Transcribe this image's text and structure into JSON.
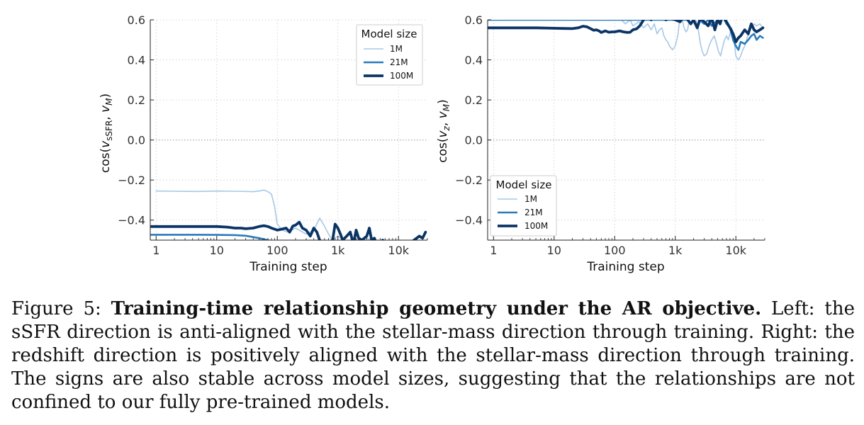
{
  "colors": {
    "1M": "#a6c8e6",
    "21M": "#2b7bba",
    "100M": "#0b3466",
    "grid": "#cccccc",
    "zero": "#aaaaaa"
  },
  "chart_data": [
    {
      "type": "line",
      "panel": "left",
      "xlabel": "Training step",
      "ylabel": "cos(v_sSFR, v_M)",
      "ylabel_parts": {
        "pre": "cos(",
        "v1": "v",
        "s1": "sSFR",
        "mid": ", ",
        "v2": "v",
        "s2": "M",
        "post": ")"
      },
      "xscale": "log",
      "xlim": [
        0.8,
        30000
      ],
      "ylim": [
        -0.5,
        0.6
      ],
      "x_ticks": [
        1,
        10,
        100,
        1000,
        10000
      ],
      "x_tick_labels": [
        "1",
        "10",
        "100",
        "1k",
        "10k"
      ],
      "y_ticks": [
        -0.4,
        -0.2,
        0.0,
        0.2,
        0.4,
        0.6
      ],
      "y_tick_labels": [
        "−0.4",
        "−0.2",
        "0.0",
        "0.2",
        "0.4",
        "0.6"
      ],
      "grid": true,
      "legend": {
        "title": "Model size",
        "position": "top-right"
      },
      "series": [
        {
          "name": "1M",
          "x": [
            1,
            2,
            5,
            10,
            20,
            40,
            50,
            60,
            70,
            80,
            90,
            100,
            120,
            150,
            200,
            300,
            400,
            500,
            600,
            700,
            800,
            1000,
            1500,
            2000,
            3000,
            5000,
            10000,
            20000,
            30000
          ],
          "y": [
            -0.255,
            -0.256,
            -0.257,
            -0.255,
            -0.256,
            -0.258,
            -0.255,
            -0.25,
            -0.258,
            -0.27,
            -0.33,
            -0.42,
            -0.45,
            -0.46,
            -0.44,
            -0.47,
            -0.45,
            -0.39,
            -0.43,
            -0.47,
            -0.5,
            -0.48,
            -0.52,
            -0.5,
            -0.49,
            -0.52,
            -0.51,
            -0.52,
            -0.5
          ]
        },
        {
          "name": "21M",
          "x": [
            0.8,
            1,
            2,
            5,
            10,
            20,
            30,
            50,
            70,
            100,
            150,
            200,
            300,
            500,
            1000,
            2000,
            5000,
            10000,
            20000,
            30000
          ],
          "y": [
            -0.473,
            -0.473,
            -0.473,
            -0.473,
            -0.474,
            -0.475,
            -0.478,
            -0.49,
            -0.5,
            -0.52,
            -0.53,
            -0.54,
            -0.53,
            -0.55,
            -0.55,
            -0.54,
            -0.56,
            -0.55,
            -0.55,
            -0.52
          ]
        },
        {
          "name": "100M",
          "x": [
            0.8,
            1,
            2,
            5,
            10,
            15,
            20,
            25,
            30,
            40,
            50,
            60,
            70,
            80,
            90,
            100,
            120,
            140,
            160,
            180,
            200,
            230,
            260,
            300,
            350,
            400,
            450,
            500,
            600,
            700,
            800,
            900,
            1000,
            1100,
            1200,
            1400,
            1600,
            1800,
            2000,
            2200,
            2500,
            3000,
            3300,
            3600,
            4000,
            4500,
            5000,
            5500,
            6000,
            8000,
            10000,
            12000,
            15000,
            18000,
            20000,
            22000,
            25000,
            28000
          ],
          "y": [
            -0.432,
            -0.432,
            -0.432,
            -0.432,
            -0.432,
            -0.435,
            -0.44,
            -0.44,
            -0.443,
            -0.44,
            -0.432,
            -0.428,
            -0.432,
            -0.44,
            -0.445,
            -0.45,
            -0.445,
            -0.44,
            -0.46,
            -0.43,
            -0.425,
            -0.41,
            -0.44,
            -0.45,
            -0.48,
            -0.44,
            -0.46,
            -0.5,
            -0.52,
            -0.55,
            -0.52,
            -0.42,
            -0.44,
            -0.47,
            -0.5,
            -0.48,
            -0.46,
            -0.52,
            -0.45,
            -0.49,
            -0.5,
            -0.48,
            -0.44,
            -0.5,
            -0.49,
            -0.53,
            -0.51,
            -0.5,
            -0.53,
            -0.54,
            -0.56,
            -0.55,
            -0.52,
            -0.5,
            -0.49,
            -0.48,
            -0.49,
            -0.46
          ]
        }
      ]
    },
    {
      "type": "line",
      "panel": "right",
      "xlabel": "Training step",
      "ylabel": "cos(v_z, v_M)",
      "ylabel_parts": {
        "pre": "cos(",
        "v1": "v",
        "s1": "z",
        "mid": ", ",
        "v2": "v",
        "s2": "M",
        "post": ")"
      },
      "xscale": "log",
      "xlim": [
        0.8,
        30000
      ],
      "ylim": [
        -0.5,
        0.6
      ],
      "x_ticks": [
        1,
        10,
        100,
        1000,
        10000
      ],
      "x_tick_labels": [
        "1",
        "10",
        "100",
        "1k",
        "10k"
      ],
      "y_ticks": [
        -0.4,
        -0.2,
        0.0,
        0.2,
        0.4,
        0.6
      ],
      "y_tick_labels": [
        "−0.4",
        "−0.2",
        "0.0",
        "0.2",
        "0.4",
        "0.6"
      ],
      "grid": true,
      "legend": {
        "title": "Model size",
        "position": "bottom-left"
      },
      "series": [
        {
          "name": "1M",
          "x": [
            0.8,
            1,
            10,
            100,
            120,
            150,
            180,
            200,
            250,
            300,
            350,
            400,
            450,
            500,
            550,
            600,
            650,
            700,
            750,
            800,
            900,
            1000,
            1100,
            1200,
            1300,
            1400,
            1500,
            1600,
            1700,
            1800,
            2000,
            2200,
            2400,
            2600,
            2800,
            3000,
            3300,
            3600,
            4000,
            4400,
            4800,
            5200,
            5600,
            6000,
            6500,
            7000,
            7500,
            8000,
            8500,
            9000,
            10000,
            11000,
            12000,
            13000,
            14000,
            15000,
            16000,
            18000,
            20000,
            22000,
            25000,
            28000
          ],
          "y": [
            0.66,
            0.66,
            0.66,
            0.64,
            0.61,
            0.58,
            0.6,
            0.57,
            0.59,
            0.56,
            0.58,
            0.55,
            0.58,
            0.53,
            0.55,
            0.56,
            0.52,
            0.5,
            0.49,
            0.47,
            0.45,
            0.47,
            0.52,
            0.62,
            0.6,
            0.56,
            0.54,
            0.55,
            0.6,
            0.62,
            0.63,
            0.6,
            0.55,
            0.48,
            0.44,
            0.42,
            0.43,
            0.47,
            0.5,
            0.52,
            0.48,
            0.44,
            0.42,
            0.46,
            0.5,
            0.52,
            0.5,
            0.53,
            0.56,
            0.54,
            0.42,
            0.4,
            0.42,
            0.45,
            0.47,
            0.5,
            0.53,
            0.56,
            0.58,
            0.57,
            0.58,
            0.56
          ]
        },
        {
          "name": "21M",
          "x": [
            0.8,
            1,
            2,
            10,
            100,
            1000,
            1500,
            2000,
            2500,
            3000,
            3500,
            4000,
            5000,
            6000,
            7000,
            8000,
            9000,
            10000,
            11000,
            12000,
            14000,
            16000,
            18000,
            20000,
            22000,
            25000,
            28000
          ],
          "y": [
            0.6,
            0.6,
            0.6,
            0.6,
            0.6,
            0.6,
            0.6,
            0.62,
            0.6,
            0.58,
            0.6,
            0.57,
            0.6,
            0.62,
            0.58,
            0.56,
            0.5,
            0.47,
            0.45,
            0.49,
            0.48,
            0.5,
            0.52,
            0.53,
            0.5,
            0.52,
            0.51
          ]
        },
        {
          "name": "100M",
          "x": [
            0.8,
            1,
            2,
            5,
            10,
            15,
            20,
            25,
            30,
            35,
            40,
            45,
            50,
            55,
            60,
            70,
            80,
            90,
            100,
            120,
            140,
            160,
            180,
            200,
            230,
            260,
            300,
            350,
            400,
            450,
            500,
            600,
            700,
            800,
            1000,
            1200,
            1400,
            1600,
            1800,
            2000,
            2300,
            2600,
            3000,
            3500,
            4000,
            4500,
            5000,
            5500,
            6000,
            7000,
            8000,
            9000,
            10000,
            11000,
            12000,
            14000,
            16000,
            18000,
            20000,
            22000,
            25000,
            28000
          ],
          "y": [
            0.56,
            0.56,
            0.56,
            0.56,
            0.558,
            0.557,
            0.556,
            0.56,
            0.568,
            0.565,
            0.556,
            0.548,
            0.55,
            0.545,
            0.537,
            0.545,
            0.538,
            0.54,
            0.54,
            0.545,
            0.54,
            0.537,
            0.538,
            0.55,
            0.555,
            0.57,
            0.6,
            0.62,
            0.6,
            0.63,
            0.61,
            0.62,
            0.6,
            0.61,
            0.6,
            0.59,
            0.62,
            0.6,
            0.58,
            0.6,
            0.56,
            0.61,
            0.59,
            0.57,
            0.61,
            0.55,
            0.6,
            0.58,
            0.62,
            0.59,
            0.56,
            0.53,
            0.49,
            0.51,
            0.52,
            0.55,
            0.53,
            0.58,
            0.55,
            0.54,
            0.55,
            0.56
          ]
        }
      ]
    }
  ],
  "caption": {
    "prefix": "Figure 5: ",
    "bold": "Training-time relationship geometry under the AR objective.",
    "text": " Left: the sSFR direction is anti-aligned with the stellar-mass direction through training. Right: the redshift direction is positively aligned with the stellar-mass direction through training. The signs are also stable across model sizes, suggesting that the relationships are not confined to our fully pre-trained models."
  }
}
